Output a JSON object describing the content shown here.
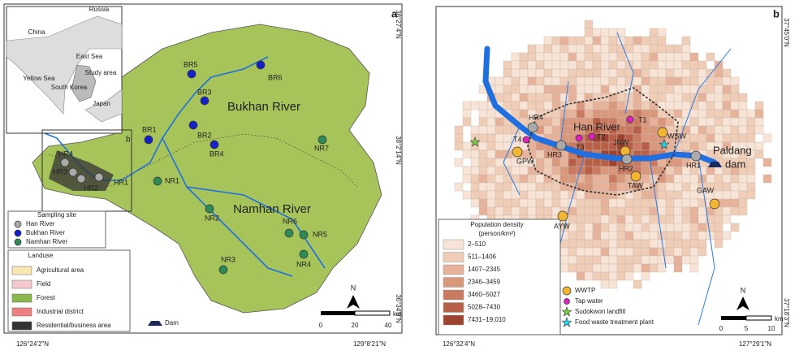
{
  "panel_a": {
    "label": "a",
    "coordinates": [
      "38°27'4\"N",
      "38°2'14\"N",
      "36°34'9\"N",
      "126°24'2\"N",
      "129°8'21\"N"
    ],
    "inset": [
      "Russia",
      "China",
      "East Sea",
      "Yellow Sea",
      "South Korea",
      "Study area",
      "Japan"
    ],
    "inset_box_label": "b",
    "rivers": [
      "Bukhan River",
      "Namhan River"
    ],
    "sites": [
      "BR5",
      "BR6",
      "BR3",
      "BR1",
      "BR2",
      "BR4",
      "NR7",
      "NR1",
      "NR2",
      "NR6",
      "NR5",
      "NR3",
      "NR4",
      "HR4",
      "HR3",
      "HR2",
      "HR1"
    ],
    "legend": {
      "sampling_title": "Sampling site",
      "sampling": [
        "Han River",
        "Bukhan River",
        "Namhan River"
      ],
      "landuse_title": "Landuse",
      "landuse": [
        "Agricultural area",
        "Field",
        "Forest",
        "Industrial district",
        "Residential/business area"
      ],
      "dam": "Dam"
    },
    "scale": [
      "0",
      "20",
      "40",
      "km"
    ],
    "north": "N"
  },
  "panel_b": {
    "label": "b",
    "coordinates": [
      "37°45'0\"N",
      "37°18'3\"N",
      "126°32'4\"N",
      "127°29'1\"N"
    ],
    "river": "Han River",
    "dam": [
      "Paldang",
      "dam"
    ],
    "sites": [
      "HR4",
      "T4",
      "T1",
      "T3",
      "T2",
      "JNW",
      "WSW",
      "HR3",
      "GPW",
      "HR2",
      "TAW",
      "HR1",
      "GAW",
      "AYW"
    ],
    "legend": {
      "density_title": [
        "Population density",
        "(person/km²)"
      ],
      "density": [
        "2–510",
        "511–1406",
        "1407–2345",
        "2346–3459",
        "3460–5027",
        "5028–7430",
        "7431–19,010"
      ],
      "facilities": [
        "WWTP",
        "Tap water",
        "Sudokwon landfill",
        "Food waste treatment plant"
      ]
    },
    "scale": [
      "0",
      "5",
      "10",
      "km"
    ],
    "north": "N"
  }
}
